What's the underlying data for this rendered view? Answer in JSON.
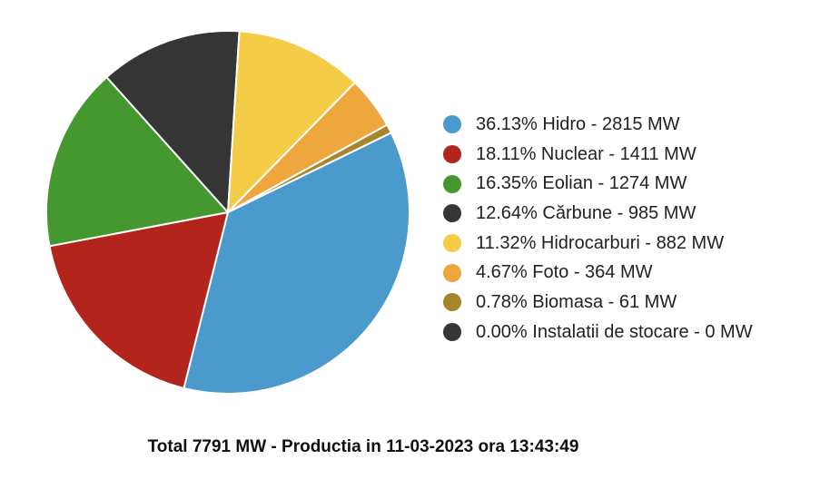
{
  "chart_data": {
    "type": "pie",
    "unit": "MW",
    "slices": [
      {
        "label": "36.13% Hidro - 2815 MW",
        "name": "Hidro",
        "percent": 36.13,
        "value": 2815,
        "color": "#4a9bcb"
      },
      {
        "label": "18.11% Nuclear - 1411 MW",
        "name": "Nuclear",
        "percent": 18.11,
        "value": 1411,
        "color": "#b2241c"
      },
      {
        "label": "16.35% Eolian - 1274 MW",
        "name": "Eolian",
        "percent": 16.35,
        "value": 1274,
        "color": "#45982f"
      },
      {
        "label": "12.64% Cărbune - 985 MW",
        "name": "Cărbune",
        "percent": 12.64,
        "value": 985,
        "color": "#353535"
      },
      {
        "label": "11.32% Hidrocarburi - 882 MW",
        "name": "Hidrocarburi",
        "percent": 11.32,
        "value": 882,
        "color": "#f5cc48"
      },
      {
        "label": "4.67% Foto - 364 MW",
        "name": "Foto",
        "percent": 4.67,
        "value": 364,
        "color": "#eea73d"
      },
      {
        "label": "0.78% Biomasa - 61 MW",
        "name": "Biomasa",
        "percent": 0.78,
        "value": 61,
        "color": "#a5862a"
      },
      {
        "label": "0.00% Instalatii de stocare - 0 MW",
        "name": "Instalatii de stocare",
        "percent": 0.0,
        "value": 0,
        "color": "#353535"
      }
    ],
    "legend_position": "right",
    "total_text": "Total 7791 MW - Productia in 11-03-2023 ora 13:43:49"
  }
}
